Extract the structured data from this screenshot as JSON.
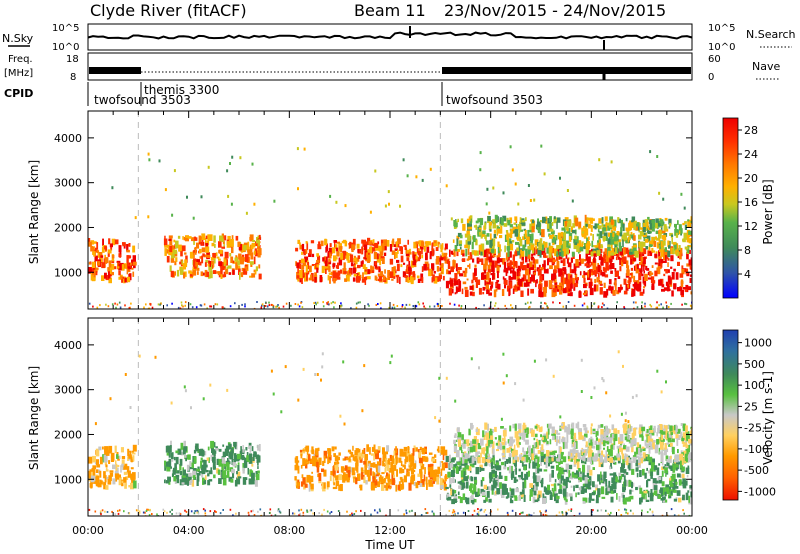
{
  "header": {
    "station": "Clyde River (fitACF)",
    "beam": "Beam 11",
    "date_range": "23/Nov/2015 - 24/Nov/2015"
  },
  "nsky_panel": {
    "left_label": "N.Sky",
    "right_label": "N.Search",
    "left_ticks": [
      "10^5",
      "10^0"
    ],
    "right_ticks": [
      "10^5",
      "10^0"
    ]
  },
  "freq_panel": {
    "left_label": "Freq.",
    "left_unit": "[MHz]",
    "right_label": "Nave",
    "left_ticks": [
      "18",
      "8"
    ],
    "right_ticks": [
      "60",
      "0"
    ]
  },
  "cpid": {
    "label": "CPID",
    "modes": [
      "twofsound 3503",
      "themis 3300",
      "twofsound 3503"
    ]
  },
  "colors": {
    "power": [
      "#0000ff",
      "#2f54a8",
      "#3f8a5a",
      "#58b24a",
      "#c8c820",
      "#ffb000",
      "#ff7a00",
      "#ff3000",
      "#ee0000"
    ],
    "velocity": [
      "#2040b0",
      "#2f6fa0",
      "#3f8a5a",
      "#58c040",
      "#c8c8c8",
      "#ffd060",
      "#ff9a00",
      "#ff6000",
      "#ee1000"
    ]
  },
  "chart_data": [
    {
      "type": "heatmap",
      "quantity": "Power",
      "xlabel": "Time UT",
      "ylabel": "Slant Range [km]",
      "xlim": [
        "00:00",
        "00:00"
      ],
      "ylim": [
        180,
        4600
      ],
      "x_ticks": [
        "00:00",
        "04:00",
        "08:00",
        "12:00",
        "16:00",
        "20:00",
        "00:00"
      ],
      "y_ticks": [
        1000,
        2000,
        3000,
        4000
      ],
      "colorbar_label": "Power [dB]",
      "colorbar_ticks": [
        "4",
        "8",
        "12",
        "16",
        "20",
        "24",
        "28"
      ],
      "dashed_markers_hours": [
        2,
        14
      ],
      "scatter_regions": [
        {
          "t0": 0.0,
          "t1": 1.8,
          "r0": 800,
          "r1": 1700,
          "value": 24
        },
        {
          "t0": 3.0,
          "t1": 6.8,
          "r0": 900,
          "r1": 1800,
          "value": 22
        },
        {
          "t0": 8.2,
          "t1": 14.2,
          "r0": 800,
          "r1": 1700,
          "value": 24
        },
        {
          "t0": 14.2,
          "t1": 24.0,
          "r0": 500,
          "r1": 1500,
          "value": 28
        },
        {
          "t0": 14.5,
          "t1": 24.0,
          "r0": 1400,
          "r1": 2200,
          "value": 14
        }
      ]
    },
    {
      "type": "heatmap",
      "quantity": "Velocity",
      "xlabel": "Time UT",
      "ylabel": "Slant Range [km]",
      "xlim": [
        "00:00",
        "00:00"
      ],
      "ylim": [
        180,
        4600
      ],
      "x_ticks": [
        "00:00",
        "04:00",
        "08:00",
        "12:00",
        "16:00",
        "20:00",
        "00:00"
      ],
      "y_ticks": [
        1000,
        2000,
        3000,
        4000
      ],
      "colorbar_label": "Velocity [m s-1]",
      "colorbar_ticks": [
        "1000",
        "500",
        "100",
        "25",
        "-25",
        "-100",
        "-500",
        "-1000"
      ],
      "dashed_markers_hours": [
        2,
        14
      ],
      "scatter_regions": [
        {
          "t0": 0.0,
          "t1": 1.8,
          "r0": 800,
          "r1": 1700,
          "value": -100
        },
        {
          "t0": 3.0,
          "t1": 6.8,
          "r0": 900,
          "r1": 1800,
          "value": 150
        },
        {
          "t0": 8.2,
          "t1": 14.2,
          "r0": 800,
          "r1": 1700,
          "value": -300
        },
        {
          "t0": 14.2,
          "t1": 24.0,
          "r0": 500,
          "r1": 1500,
          "value": 120
        },
        {
          "t0": 14.5,
          "t1": 24.0,
          "r0": 1400,
          "r1": 2200,
          "value": 0
        }
      ]
    }
  ]
}
